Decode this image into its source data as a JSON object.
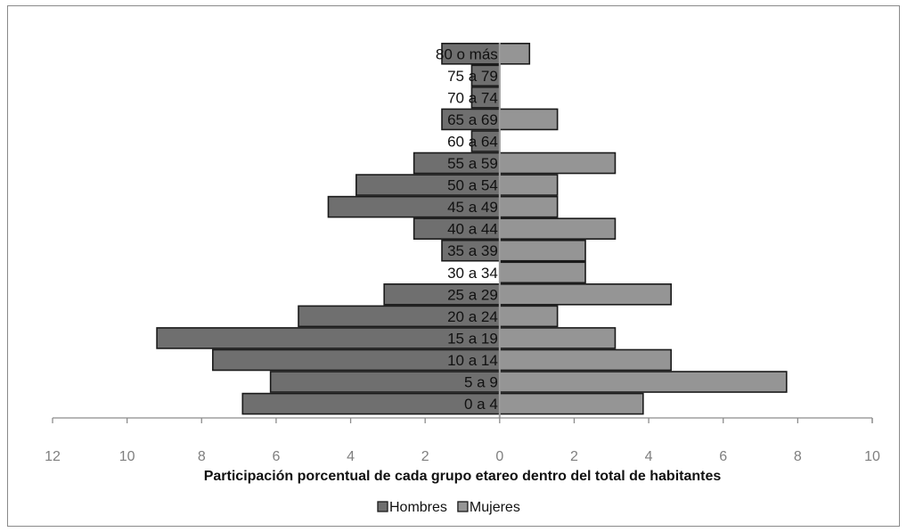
{
  "chart_data": {
    "type": "bar",
    "orientation": "horizontal",
    "subtype": "population-pyramid",
    "categories": [
      "0 a 4",
      "5 a 9",
      "10 a 14",
      "15 a 19",
      "20 a 24",
      "25 a 29",
      "30 a 34",
      "35 a 39",
      "40 a 44",
      "45 a 49",
      "50 a 54",
      "55 a 59",
      "60 a 64",
      "65 a 69",
      "70 a 74",
      "75 a 79",
      "80 o más"
    ],
    "series": [
      {
        "name": "Hombres",
        "color": "#6f6f6f",
        "values": [
          6.9,
          6.15,
          7.7,
          9.2,
          5.4,
          3.1,
          0,
          1.55,
          2.3,
          4.6,
          3.85,
          2.3,
          0.75,
          1.55,
          0.75,
          0.75,
          1.55
        ]
      },
      {
        "name": "Mujeres",
        "color": "#959595",
        "values": [
          3.85,
          7.7,
          4.6,
          3.1,
          1.55,
          4.6,
          2.3,
          2.3,
          3.1,
          1.55,
          1.55,
          3.1,
          0,
          1.55,
          0,
          0,
          0.8
        ]
      }
    ],
    "xlabel": "Participación porcentual de cada grupo etareo dentro del total de habitantes",
    "xticks": [
      "12",
      "10",
      "8",
      "6",
      "4",
      "2",
      "0",
      "2",
      "4",
      "6",
      "8",
      "10"
    ],
    "xlim": [
      -12,
      10
    ],
    "legend": "bottom"
  }
}
